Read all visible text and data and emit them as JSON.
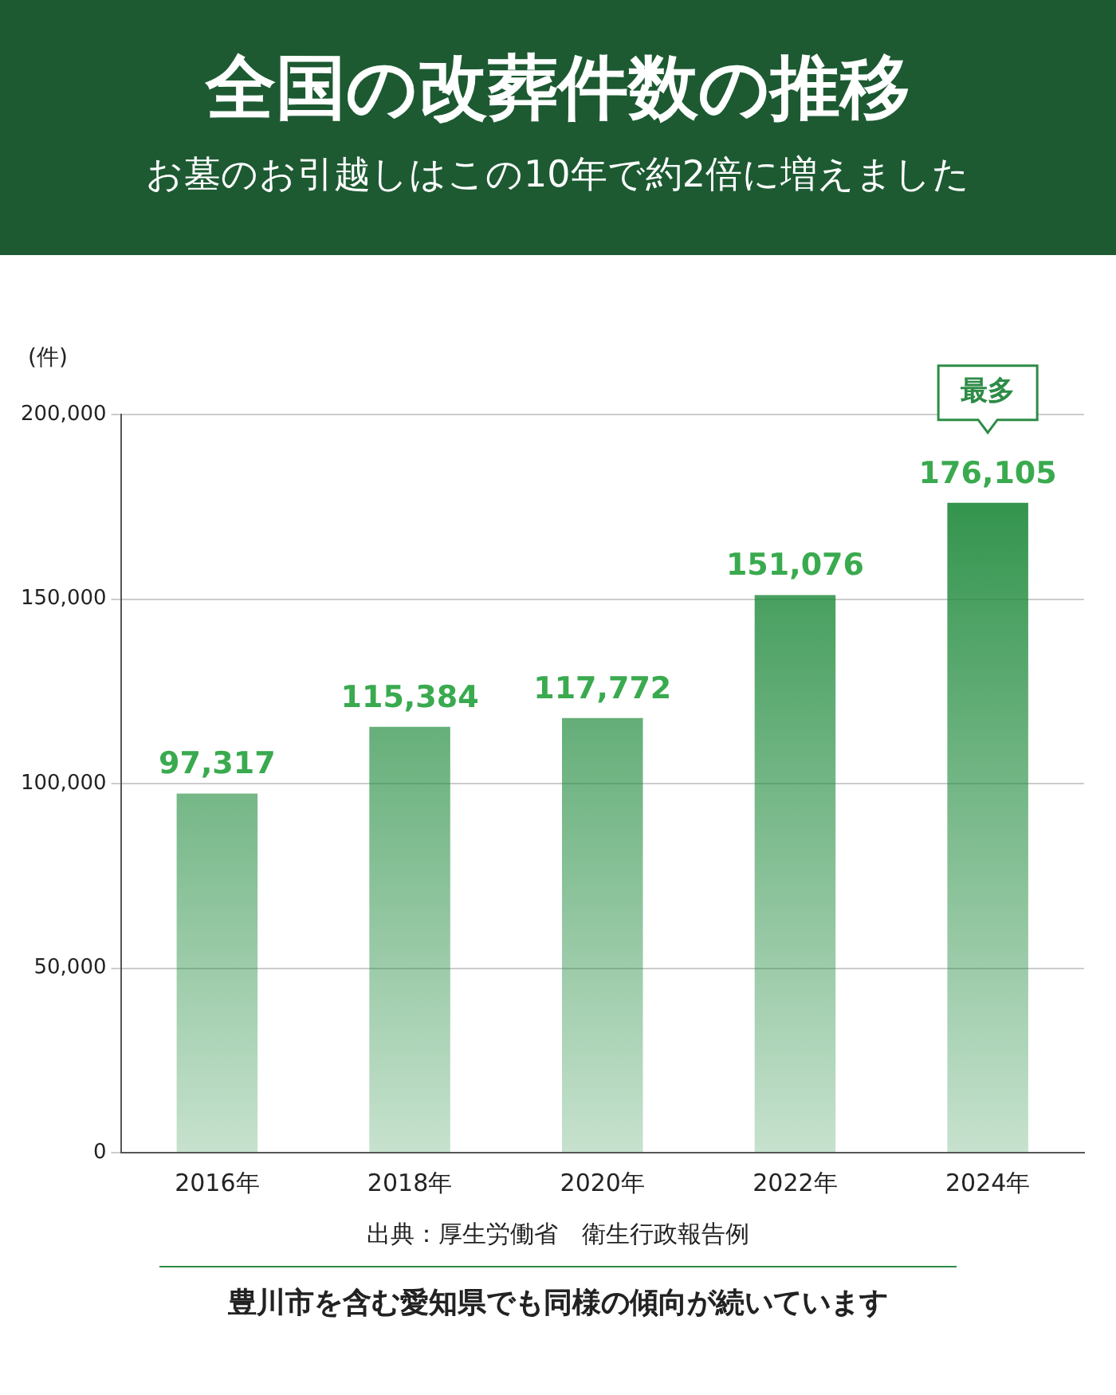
{
  "chart_data": {
    "type": "bar",
    "title": "全国の改葬件数の推移",
    "subtitle": "お墓のお引越しはこの10年で約2倍に増えました",
    "ylabel": "(件)",
    "categories": [
      "2016年",
      "2018年",
      "2020年",
      "2022年",
      "2024年"
    ],
    "values": [
      97317,
      115384,
      117772,
      151076,
      176105
    ],
    "color": "#1f8a3c",
    "ylim": [
      0,
      200000
    ],
    "yticks": [
      0,
      {
        "value": 50000,
        "label": "50,000"
      },
      {
        "value": 100000,
        "label": "100,000"
      },
      {
        "value": 150000,
        "label": "150,000"
      },
      {
        "value": 200000,
        "label": "200,000"
      }
    ],
    "grid": "y",
    "value_labels": [
      "97,317",
      "115,384",
      "117,772",
      "151,076",
      "176,105"
    ],
    "annotations": [
      "最多",
      "出典：厚生労働省　衛生行政報告例",
      "豊川市を含む愛知県でも同様の傾向が続いています"
    ]
  }
}
